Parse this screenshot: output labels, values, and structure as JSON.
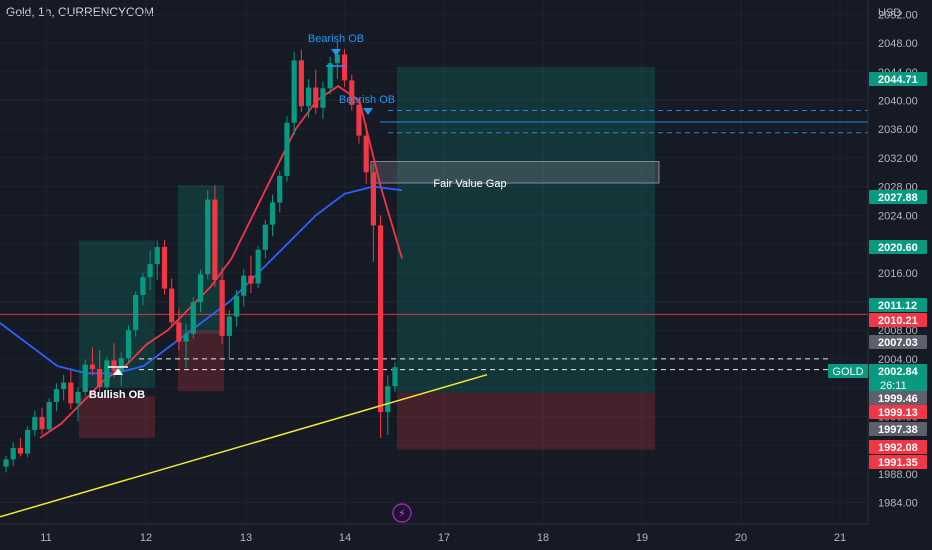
{
  "header": {
    "title": "Gold, 1h, CURRENCYCOM",
    "currency": "USD"
  },
  "chart_data": {
    "type": "candlestick",
    "symbol": "GOLD",
    "timeframe": "1h",
    "x_ticks": [
      "11",
      "12",
      "13",
      "14",
      "17",
      "18",
      "19",
      "20",
      "21"
    ],
    "y_ticks": [
      2052,
      2048,
      2044,
      2040,
      2036,
      2032,
      2028,
      2024,
      2020,
      2016,
      2012,
      2008,
      2004,
      2000,
      1996,
      1992,
      1988,
      1984
    ],
    "ylim": [
      1981,
      2054
    ],
    "price_tags": [
      {
        "label": "2044.71",
        "value": 2044.71,
        "color": "#089981"
      },
      {
        "label": "2027.88",
        "value": 2027.88,
        "color": "#089981"
      },
      {
        "label": "2020.60",
        "value": 2020.6,
        "color": "#089981"
      },
      {
        "label": "2011.12",
        "value": 2011.12,
        "color": "#089981"
      },
      {
        "label": "2010.21",
        "value": 2010.21,
        "color": "#f23645"
      },
      {
        "label": "2007.03",
        "value": 2007.03,
        "color": "#5d606b"
      },
      {
        "label": "2002.84",
        "value": 2002.84,
        "color": "#089981",
        "sublabel": "26:11",
        "symbol": "GOLD"
      },
      {
        "label": "1999.46",
        "value": 1999.46,
        "color": "#5d606b"
      },
      {
        "label": "1999.13",
        "value": 1999.13,
        "color": "#f23645"
      },
      {
        "label": "1997.38",
        "value": 1997.38,
        "color": "#5d606b"
      },
      {
        "label": "1992.08",
        "value": 1992.08,
        "color": "#f23645"
      },
      {
        "label": "1991.35",
        "value": 1991.35,
        "color": "#f23645"
      }
    ],
    "annotations": [
      {
        "text": "Bearish OB",
        "color": "#2196f3"
      },
      {
        "text": "Bearish OB",
        "color": "#2196f3"
      },
      {
        "text": "Bullish OB",
        "color": "#ffffff"
      },
      {
        "text": "Fair Value Gap",
        "color": "#ffffff"
      }
    ],
    "horizontal_lines": [
      {
        "value": 2010.21,
        "color": "#f23645",
        "style": "solid"
      },
      {
        "value": 2038.6,
        "color": "#2196f3",
        "style": "dashed"
      },
      {
        "value": 2037.0,
        "color": "#2196f3",
        "style": "solid"
      },
      {
        "value": 2035.5,
        "color": "#2196f3",
        "style": "dashed"
      },
      {
        "value": 2004.0,
        "color": "#ffffff",
        "style": "dashed"
      },
      {
        "value": 2002.5,
        "color": "#ffffff",
        "style": "dashed"
      }
    ],
    "trendline": {
      "color": "#f2e735",
      "from_value": 1982.0,
      "to_value": 2001.8
    },
    "zones": [
      {
        "name": "bullish-ob-target",
        "color": "#089981",
        "from": 2000.0,
        "to": 2020.5
      },
      {
        "name": "bullish-ob-stop",
        "color": "#f23645",
        "from": 1993.0,
        "to": 1998.8
      },
      {
        "name": "second-long-target",
        "color": "#089981",
        "from": 2007.5,
        "to": 2028.2
      },
      {
        "name": "second-long-stop",
        "color": "#f23645",
        "from": 1999.5,
        "to": 2008.0
      },
      {
        "name": "long-position-target",
        "color": "#089981",
        "from": 1999.3,
        "to": 2044.71
      },
      {
        "name": "long-position-stop",
        "color": "#f23645",
        "from": 1991.35,
        "to": 1999.3
      },
      {
        "name": "fair-value-gap",
        "color": "#787b86",
        "from": 2028.5,
        "to": 2031.5
      }
    ],
    "moving_averages": [
      {
        "color": "#f23645",
        "values": [
          1993,
          1995,
          1998,
          2001,
          2003,
          2006,
          2008,
          2011,
          2014,
          2018,
          2024,
          2030,
          2036,
          2040,
          2042,
          2040,
          2028,
          2018
        ]
      },
      {
        "color": "#2962ff",
        "values": [
          2009,
          2006,
          2003,
          2002,
          2002,
          2003,
          2006,
          2009,
          2012,
          2016,
          2020,
          2024,
          2027,
          2028,
          2027.5
        ]
      }
    ],
    "ohlc": [
      [
        1989,
        1990.5,
        1988.2,
        1990.0
      ],
      [
        1990.0,
        1992.4,
        1989.1,
        1991.6
      ],
      [
        1991.6,
        1993.0,
        1990.4,
        1990.8
      ],
      [
        1990.8,
        1994.6,
        1990.3,
        1994.1
      ],
      [
        1994.1,
        1996.8,
        1993.2,
        1995.9
      ],
      [
        1995.9,
        1997.2,
        1993.5,
        1994.2
      ],
      [
        1994.2,
        1998.5,
        1993.9,
        1998.0
      ],
      [
        1998.0,
        2000.6,
        1996.7,
        1999.8
      ],
      [
        1999.8,
        2001.8,
        1998.2,
        2000.7
      ],
      [
        2000.7,
        2002.4,
        1997.0,
        1997.8
      ],
      [
        1997.8,
        2000.1,
        1995.3,
        1999.4
      ],
      [
        1999.4,
        2003.9,
        1998.8,
        2003.2
      ],
      [
        2003.2,
        2005.6,
        2001.7,
        2002.6
      ],
      [
        2002.6,
        2005.2,
        1999.0,
        2000.1
      ],
      [
        2000.1,
        2004.3,
        1999.8,
        2003.8
      ],
      [
        2003.8,
        2006.2,
        2001.4,
        2002.3
      ],
      [
        2002.3,
        2004.9,
        2000.2,
        2004.1
      ],
      [
        2004.1,
        2008.7,
        2003.6,
        2008.0
      ],
      [
        2008.0,
        2013.4,
        2007.1,
        2012.9
      ],
      [
        2012.9,
        2016.0,
        2011.5,
        2015.4
      ],
      [
        2015.4,
        2019.1,
        2013.6,
        2017.2
      ],
      [
        2017.2,
        2020.5,
        2015.0,
        2019.6
      ],
      [
        2019.6,
        2020.6,
        2013.0,
        2013.8
      ],
      [
        2013.8,
        2015.2,
        2008.4,
        2009.1
      ],
      [
        2009.1,
        2011.0,
        2005.2,
        2006.4
      ],
      [
        2006.4,
        2008.9,
        2002.8,
        2007.5
      ],
      [
        2007.5,
        2012.6,
        2006.8,
        2011.9
      ],
      [
        2011.9,
        2016.4,
        2010.5,
        2015.8
      ],
      [
        2015.8,
        2027.5,
        2015.1,
        2026.2
      ],
      [
        2026.2,
        2028.2,
        2014.0,
        2015.0
      ],
      [
        2015.0,
        2016.7,
        2006.1,
        2007.2
      ],
      [
        2007.2,
        2010.8,
        2004.0,
        2009.9
      ],
      [
        2009.9,
        2013.6,
        2008.5,
        2012.8
      ],
      [
        2012.8,
        2016.5,
        2011.3,
        2015.6
      ],
      [
        2015.6,
        2018.4,
        2013.2,
        2014.5
      ],
      [
        2014.5,
        2019.7,
        2013.9,
        2019.2
      ],
      [
        2019.2,
        2023.4,
        2018.0,
        2022.7
      ],
      [
        2022.7,
        2026.9,
        2021.1,
        2025.8
      ],
      [
        2025.8,
        2030.2,
        2024.4,
        2029.5
      ],
      [
        2029.5,
        2037.8,
        2028.7,
        2036.9
      ],
      [
        2036.9,
        2046.8,
        2035.2,
        2045.6
      ],
      [
        2045.6,
        2047.1,
        2038.4,
        2039.2
      ],
      [
        2039.2,
        2043.0,
        2037.6,
        2041.8
      ],
      [
        2041.8,
        2044.3,
        2038.1,
        2039.0
      ],
      [
        2039.0,
        2042.6,
        2037.4,
        2041.7
      ],
      [
        2041.7,
        2046.1,
        2040.9,
        2045.2
      ],
      [
        2045.2,
        2048.3,
        2043.0,
        2046.4
      ],
      [
        2046.4,
        2047.2,
        2041.9,
        2042.8
      ],
      [
        2042.8,
        2043.6,
        2038.6,
        2039.4
      ],
      [
        2039.4,
        2040.3,
        2034.0,
        2035.1
      ],
      [
        2035.1,
        2036.8,
        2028.4,
        2030.0
      ],
      [
        2030.0,
        2031.2,
        2017.5,
        2022.6
      ],
      [
        2022.6,
        2024.0,
        1993.0,
        1996.6
      ],
      [
        1996.6,
        2001.7,
        1993.4,
        2000.2
      ],
      [
        2000.2,
        2003.6,
        1999.4,
        2002.84
      ]
    ]
  },
  "footer": {
    "badge": "⚡"
  }
}
